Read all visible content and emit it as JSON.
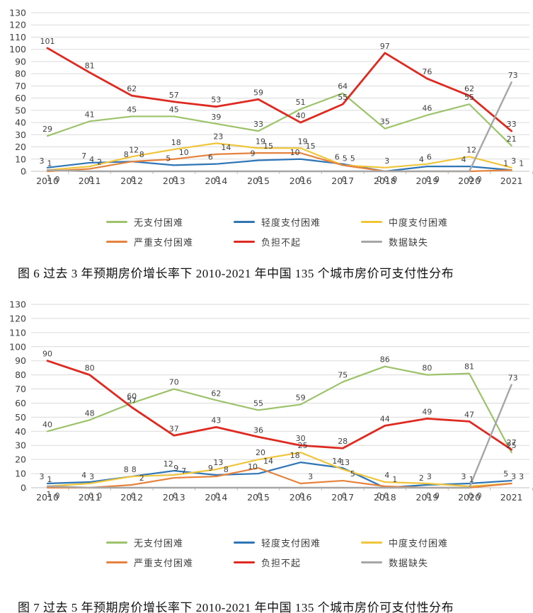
{
  "page": {
    "background": "#ffffff"
  },
  "figures": [
    {
      "caption": "图 6 过去 3 年预期房价增长率下 2010-2021 年中国 135 个城市房价可支付性分布"
    },
    {
      "caption": "图 7 过去 5 年预期房价增长率下 2010-2021 年中国 135 个城市房价可支付性分布"
    }
  ],
  "chart_data": [
    {
      "type": "line",
      "title": "过去3年预期房价增长率下2010-2021年中国135个城市房价可支付性分布",
      "x": [
        2010,
        2011,
        2012,
        2013,
        2014,
        2015,
        2016,
        2017,
        2018,
        2019,
        2020,
        2021
      ],
      "ylim": [
        0,
        130
      ],
      "ytick_step": 10,
      "grid": true,
      "legend_position": "bottom",
      "data_labels": true,
      "series": [
        {
          "name": "无支付困难",
          "id": "no-payment-difficulty",
          "color": "#9CC36A",
          "values": [
            29,
            41,
            45,
            45,
            39,
            33,
            51,
            64,
            35,
            46,
            55,
            21
          ]
        },
        {
          "name": "轻度支付困难",
          "id": "mild-payment-difficulty",
          "color": "#2E75B6",
          "values": [
            3,
            7,
            8,
            5,
            6,
            9,
            10,
            6,
            0,
            4,
            4,
            1
          ]
        },
        {
          "name": "中度支付困难",
          "id": "moderate-payment-difficulty",
          "color": "#F0C53B",
          "values": [
            1,
            4,
            12,
            18,
            23,
            19,
            19,
            5,
            3,
            6,
            12,
            3
          ]
        },
        {
          "name": "严重支付困难",
          "id": "severe-payment-difficulty",
          "color": "#E5833E",
          "values": [
            0,
            2,
            8,
            10,
            14,
            15,
            15,
            5,
            0,
            0,
            0,
            1
          ]
        },
        {
          "name": "负担不起",
          "id": "unaffordable",
          "color": "#DE2A20",
          "values": [
            101,
            81,
            62,
            57,
            53,
            59,
            40,
            55,
            97,
            76,
            62,
            33
          ]
        },
        {
          "name": "数据缺失",
          "id": "data-missing",
          "color": "#A6A6A6",
          "values": [
            1,
            0,
            0,
            0,
            0,
            0,
            0,
            0,
            0,
            0,
            0,
            73
          ]
        }
      ]
    },
    {
      "type": "line",
      "title": "过去5年预期房价增长率下2010-2021年中国135个城市房价可支付性分布",
      "x": [
        2010,
        2011,
        2012,
        2013,
        2014,
        2015,
        2016,
        2017,
        2018,
        2019,
        2020,
        2021
      ],
      "ylim": [
        0,
        130
      ],
      "ytick_step": 10,
      "grid": true,
      "legend_position": "bottom",
      "data_labels": true,
      "series": [
        {
          "name": "无支付困难",
          "id": "no-payment-difficulty",
          "color": "#9CC36A",
          "values": [
            40,
            48,
            60,
            70,
            62,
            55,
            59,
            75,
            86,
            80,
            81,
            25
          ]
        },
        {
          "name": "轻度支付困难",
          "id": "mild-payment-difficulty",
          "color": "#2E75B6",
          "values": [
            3,
            4,
            8,
            12,
            9,
            10,
            18,
            14,
            0,
            2,
            3,
            5
          ]
        },
        {
          "name": "中度支付困难",
          "id": "moderate-payment-difficulty",
          "color": "#F0C53B",
          "values": [
            1,
            3,
            8,
            9,
            13,
            20,
            25,
            13,
            4,
            3,
            1,
            3
          ]
        },
        {
          "name": "严重支付困难",
          "id": "severe-payment-difficulty",
          "color": "#E5833E",
          "values": [
            0,
            0,
            2,
            7,
            8,
            14,
            3,
            5,
            1,
            0,
            0,
            3
          ]
        },
        {
          "name": "负担不起",
          "id": "unaffordable",
          "color": "#DE2A20",
          "values": [
            90,
            80,
            57,
            37,
            43,
            36,
            30,
            28,
            44,
            49,
            47,
            27
          ]
        },
        {
          "name": "数据缺失",
          "id": "data-missing",
          "color": "#A6A6A6",
          "values": [
            1,
            0,
            0,
            0,
            0,
            0,
            0,
            0,
            0,
            0,
            0,
            73
          ]
        }
      ]
    }
  ]
}
